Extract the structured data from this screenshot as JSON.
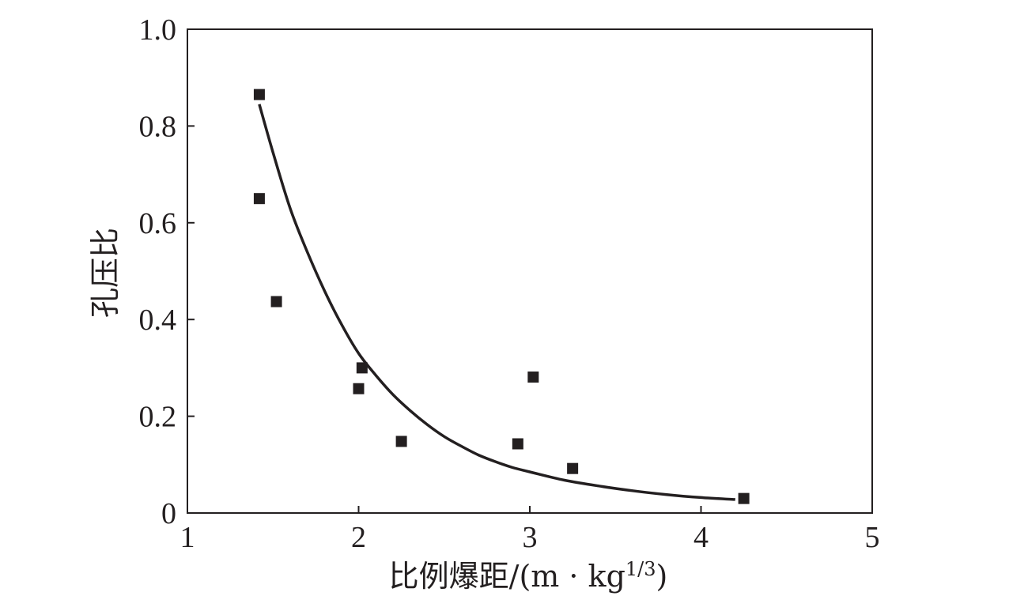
{
  "chart_data": {
    "type": "scatter",
    "xlabel_main": "比例爆距/(m · kg",
    "xlabel_sup": "1/3",
    "xlabel_close": ")",
    "ylabel": "孔压比",
    "xlim": [
      1,
      5
    ],
    "ylim": [
      0,
      1.0
    ],
    "x_ticks": [
      1,
      2,
      3,
      4,
      5
    ],
    "x_tick_labels": [
      "1",
      "2",
      "3",
      "4",
      "5"
    ],
    "y_ticks": [
      0,
      0.2,
      0.4,
      0.6,
      0.8,
      1.0
    ],
    "y_tick_labels": [
      "0",
      "0.2",
      "0.4",
      "0.6",
      "0.8",
      "1.0"
    ],
    "grid": false,
    "legend": "none",
    "points": [
      {
        "x": 1.42,
        "y": 0.865
      },
      {
        "x": 1.42,
        "y": 0.65
      },
      {
        "x": 1.52,
        "y": 0.437
      },
      {
        "x": 2.02,
        "y": 0.3
      },
      {
        "x": 2.0,
        "y": 0.257
      },
      {
        "x": 2.25,
        "y": 0.148
      },
      {
        "x": 2.93,
        "y": 0.143
      },
      {
        "x": 3.02,
        "y": 0.281
      },
      {
        "x": 3.25,
        "y": 0.092
      },
      {
        "x": 4.25,
        "y": 0.03
      }
    ],
    "fit_curve": {
      "x": [
        1.42,
        1.5,
        1.6,
        1.7,
        1.8,
        1.9,
        2.0,
        2.1,
        2.2,
        2.3,
        2.4,
        2.5,
        2.6,
        2.7,
        2.8,
        2.9,
        3.0,
        3.2,
        3.4,
        3.6,
        3.8,
        4.0,
        4.2
      ],
      "y": [
        0.845,
        0.745,
        0.63,
        0.54,
        0.46,
        0.39,
        0.33,
        0.285,
        0.245,
        0.212,
        0.183,
        0.158,
        0.138,
        0.12,
        0.106,
        0.094,
        0.085,
        0.068,
        0.056,
        0.046,
        0.038,
        0.032,
        0.028
      ]
    },
    "colors": {
      "ink": "#231f20",
      "background": "#ffffff"
    }
  }
}
